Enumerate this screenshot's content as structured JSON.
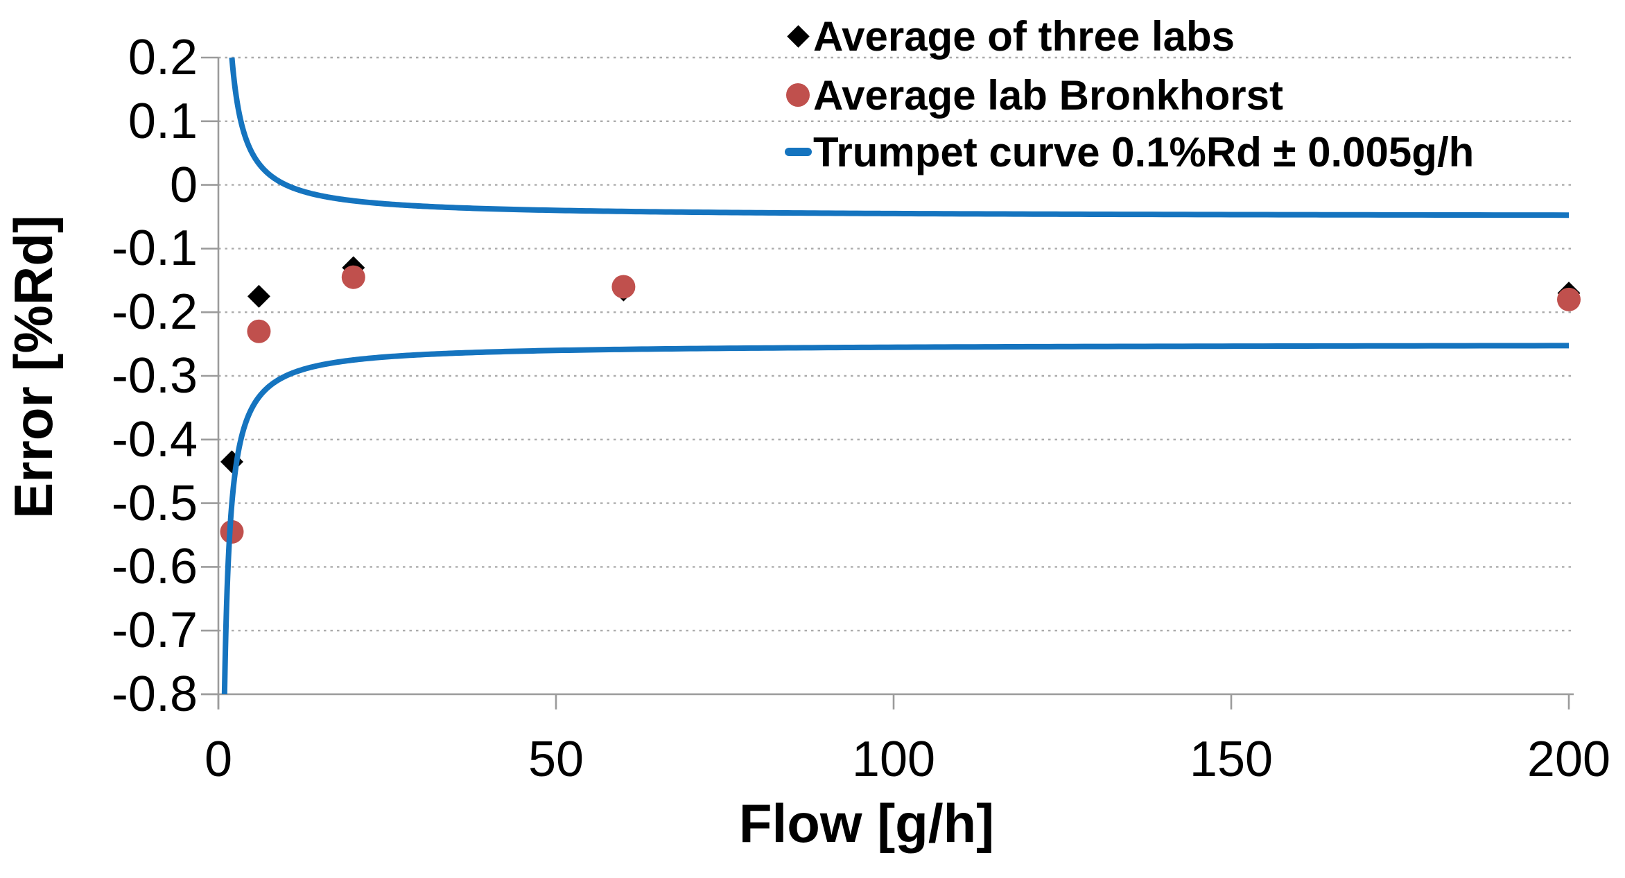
{
  "chart_data": {
    "type": "scatter",
    "title": "",
    "xlabel": "Flow [g/h]",
    "ylabel": "Error [%Rd]",
    "xlim": [
      0,
      200
    ],
    "ylim": [
      -0.8,
      0.2
    ],
    "x_ticks": [
      0,
      50,
      100,
      150,
      200
    ],
    "y_ticks": [
      0.2,
      0.1,
      0,
      -0.1,
      -0.2,
      -0.3,
      -0.4,
      -0.5,
      -0.6,
      -0.7,
      -0.8
    ],
    "grid": "horizontal dotted gridlines on, no vertical gridlines",
    "legend_position": "top, inside chart, transparent background",
    "series": [
      {
        "name": "Average of three labs",
        "marker": "diamond",
        "color": "#000000",
        "points": [
          [
            2,
            -0.435
          ],
          [
            6,
            -0.175
          ],
          [
            20,
            -0.13
          ],
          [
            60,
            -0.165
          ],
          [
            200,
            -0.17
          ]
        ]
      },
      {
        "name": "Average lab Bronkhorst",
        "marker": "circle",
        "color": "#C0504D",
        "points": [
          [
            2,
            -0.545
          ],
          [
            6,
            -0.23
          ],
          [
            20,
            -0.145
          ],
          [
            60,
            -0.16
          ],
          [
            200,
            -0.18
          ]
        ]
      },
      {
        "name": "Trumpet curve 0.1%Rd ± 0.005g/h",
        "marker": "line",
        "color": "#1574BF",
        "trumpet": {
          "center_error_pct": -0.15,
          "rd_term_pct": 0.1,
          "zero_term_g_per_h": 0.005,
          "note": "upper/lower = center ± (0.1 + 100*0.005/flow), clipped to ylim"
        }
      }
    ],
    "colors": {
      "axis_line": "#9B9B9B",
      "gridline": "#ABABAB",
      "blue_curve": "#1574BF",
      "red_marker": "#C0504D",
      "black_marker": "#000000"
    }
  }
}
